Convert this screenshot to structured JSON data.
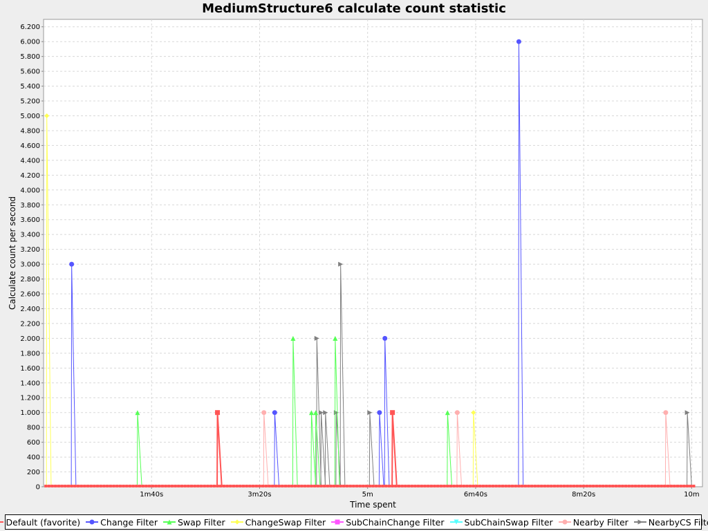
{
  "chart_data": {
    "type": "line",
    "title": "MediumStructure6 calculate count statistic",
    "xlabel": "Time spent",
    "ylabel": "Calculate count per second",
    "xlim": [
      0,
      610
    ],
    "ylim": [
      0,
      6300
    ],
    "x_ticks": [
      {
        "value": 100,
        "label": "1m40s"
      },
      {
        "value": 200,
        "label": "3m20s"
      },
      {
        "value": 300,
        "label": "5m"
      },
      {
        "value": 400,
        "label": "6m40s"
      },
      {
        "value": 500,
        "label": "8m20s"
      },
      {
        "value": 600,
        "label": "10m"
      }
    ],
    "y_ticks": [
      {
        "value": 0,
        "label": "0"
      },
      {
        "value": 200,
        "label": "200"
      },
      {
        "value": 400,
        "label": "400"
      },
      {
        "value": 600,
        "label": "600"
      },
      {
        "value": 800,
        "label": "800"
      },
      {
        "value": 1000,
        "label": "1.000"
      },
      {
        "value": 1200,
        "label": "1.200"
      },
      {
        "value": 1400,
        "label": "1.400"
      },
      {
        "value": 1600,
        "label": "1.600"
      },
      {
        "value": 1800,
        "label": "1.800"
      },
      {
        "value": 2000,
        "label": "2.000"
      },
      {
        "value": 2200,
        "label": "2.200"
      },
      {
        "value": 2400,
        "label": "2.400"
      },
      {
        "value": 2600,
        "label": "2.600"
      },
      {
        "value": 2800,
        "label": "2.800"
      },
      {
        "value": 3000,
        "label": "3.000"
      },
      {
        "value": 3200,
        "label": "3.200"
      },
      {
        "value": 3400,
        "label": "3.400"
      },
      {
        "value": 3600,
        "label": "3.600"
      },
      {
        "value": 3800,
        "label": "3.800"
      },
      {
        "value": 4000,
        "label": "4.000"
      },
      {
        "value": 4200,
        "label": "4.200"
      },
      {
        "value": 4400,
        "label": "4.400"
      },
      {
        "value": 4600,
        "label": "4.600"
      },
      {
        "value": 4800,
        "label": "4.800"
      },
      {
        "value": 5000,
        "label": "5.000"
      },
      {
        "value": 5200,
        "label": "5.200"
      },
      {
        "value": 5400,
        "label": "5.400"
      },
      {
        "value": 5600,
        "label": "5.600"
      },
      {
        "value": 5800,
        "label": "5.800"
      },
      {
        "value": 6000,
        "label": "6.000"
      },
      {
        "value": 6200,
        "label": "6.200"
      }
    ],
    "grid": true,
    "legend_position": "bottom",
    "series_end_x": 602,
    "series": [
      {
        "name": "Default (favorite)",
        "color": "#ff5555",
        "marker": "square",
        "spikes": [
          [
            161,
            1000
          ],
          [
            323,
            1000
          ]
        ]
      },
      {
        "name": "Change Filter",
        "color": "#5555ff",
        "marker": "circle",
        "spikes": [
          [
            26,
            3000
          ],
          [
            214,
            1000
          ],
          [
            311,
            1000
          ],
          [
            316,
            2000
          ],
          [
            440,
            6000
          ]
        ]
      },
      {
        "name": "Swap Filter",
        "color": "#55ff55",
        "marker": "triangle-up",
        "spikes": [
          [
            87,
            1000
          ],
          [
            231,
            2000
          ],
          [
            248,
            1000
          ],
          [
            252,
            1000
          ],
          [
            270,
            2000
          ],
          [
            374,
            1000
          ]
        ]
      },
      {
        "name": "ChangeSwap Filter",
        "color": "#ffff55",
        "marker": "diamond",
        "spikes": [
          [
            3,
            5000
          ],
          [
            398,
            1000
          ]
        ]
      },
      {
        "name": "SubChainChange Filter",
        "color": "#ff55ff",
        "marker": "square",
        "spikes": []
      },
      {
        "name": "SubChainSwap Filter",
        "color": "#55ffff",
        "marker": "triangle-down",
        "spikes": []
      },
      {
        "name": "Nearby Filter",
        "color": "#ffafaf",
        "marker": "circle",
        "spikes": [
          [
            204,
            1000
          ],
          [
            383,
            1000
          ],
          [
            576,
            1000
          ]
        ]
      },
      {
        "name": "NearbyCS Filter",
        "color": "#808080",
        "marker": "triangle-right",
        "spikes": [
          [
            253,
            2000
          ],
          [
            257,
            1000
          ],
          [
            261,
            1000
          ],
          [
            271,
            1000
          ],
          [
            275,
            3000
          ],
          [
            302,
            1000
          ],
          [
            596,
            1000
          ]
        ]
      }
    ]
  }
}
